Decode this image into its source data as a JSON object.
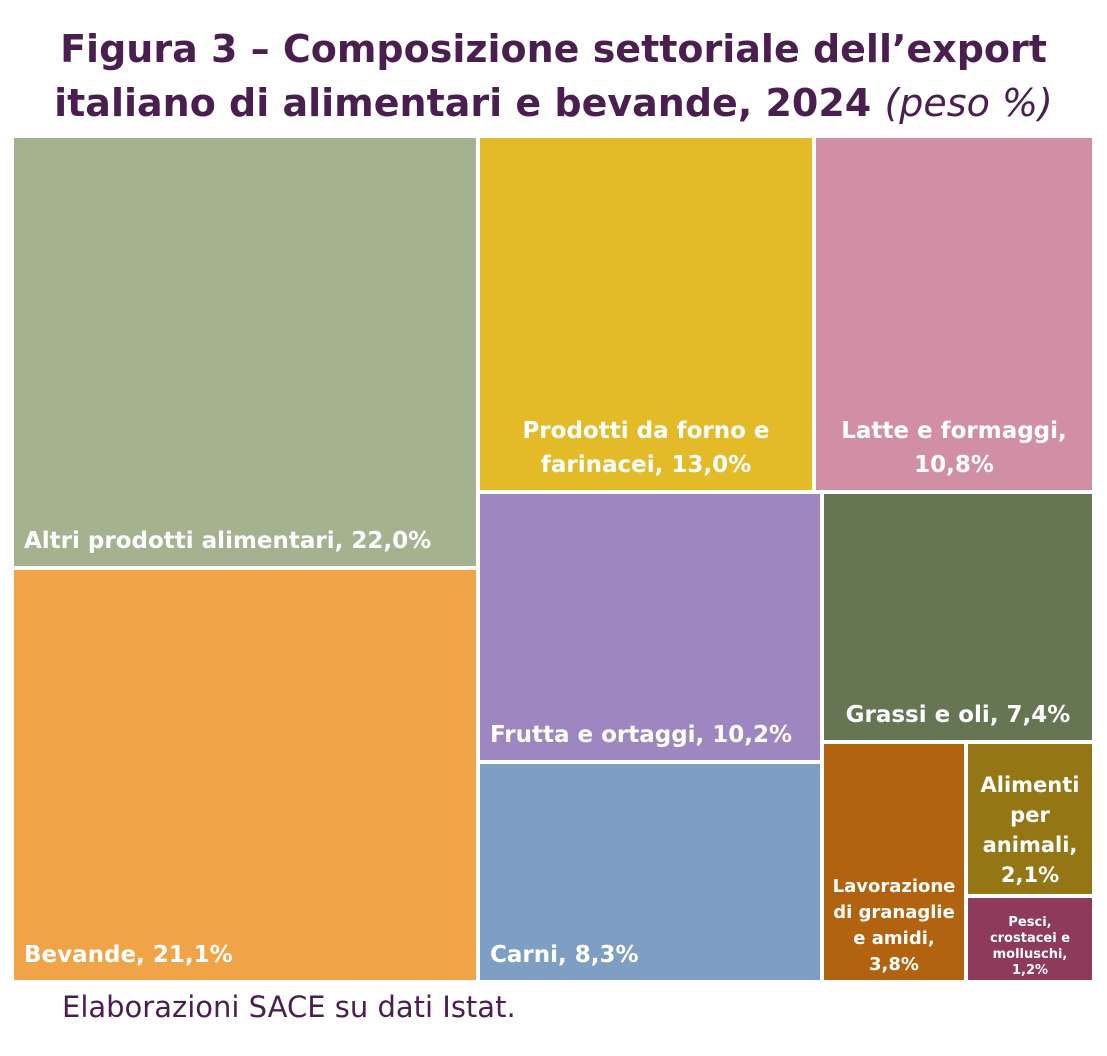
{
  "title": {
    "line1": "Figura 3 – Composizione settoriale dell’export",
    "line2": "italiano di alimentari e bevande, 2024",
    "unit": "(peso %)"
  },
  "source": "Elaborazioni SACE su dati Istat.",
  "chart_data": {
    "type": "treemap",
    "title": "Figura 3 – Composizione settoriale dell’export italiano di alimentari e bevande, 2024 (peso %)",
    "unit": "%",
    "items": [
      {
        "id": "altri",
        "name": "Altri prodotti alimentari",
        "value": 22.0,
        "label_lines": [
          "Altri prodotti alimentari, 22,0%"
        ],
        "color": "#a4b28f"
      },
      {
        "id": "bevande",
        "name": "Bevande",
        "value": 21.1,
        "label_lines": [
          "Bevande, 21,1%"
        ],
        "color": "#f1a447"
      },
      {
        "id": "forno",
        "name": "Prodotti da forno e farinacei",
        "value": 13.0,
        "label_lines": [
          "Prodotti da forno e",
          "farinacei, 13,0%"
        ],
        "color": "#e3bb29"
      },
      {
        "id": "latte",
        "name": "Latte e formaggi",
        "value": 10.8,
        "label_lines": [
          "Latte e formaggi,",
          "10,8%"
        ],
        "color": "#d08fa5"
      },
      {
        "id": "frutta",
        "name": "Frutta e ortaggi",
        "value": 10.2,
        "label_lines": [
          "Frutta e ortaggi, 10,2%"
        ],
        "color": "#9e86c1"
      },
      {
        "id": "carni",
        "name": "Carni",
        "value": 8.3,
        "label_lines": [
          "Carni, 8,3%"
        ],
        "color": "#7f9ec3"
      },
      {
        "id": "grassi",
        "name": "Grassi e oli",
        "value": 7.4,
        "label_lines": [
          "Grassi e oli, 7,4%"
        ],
        "color": "#667552"
      },
      {
        "id": "granaglie",
        "name": "Lavorazione di granaglie e amidi",
        "value": 3.8,
        "label_lines": [
          "Lavorazione",
          "di granaglie",
          "e amidi,",
          "3,8%"
        ],
        "color": "#b1630f"
      },
      {
        "id": "animali",
        "name": "Alimenti per animali",
        "value": 2.1,
        "label_lines": [
          "Alimenti",
          "per",
          "animali,",
          "2,1%"
        ],
        "color": "#957614"
      },
      {
        "id": "pesci",
        "name": "Pesci, crostacei e molluschi",
        "value": 1.2,
        "label_lines": [
          "Pesci,",
          "crostacei e",
          "molluschi,",
          "1,2%"
        ],
        "color": "#8d3a5b"
      }
    ]
  }
}
